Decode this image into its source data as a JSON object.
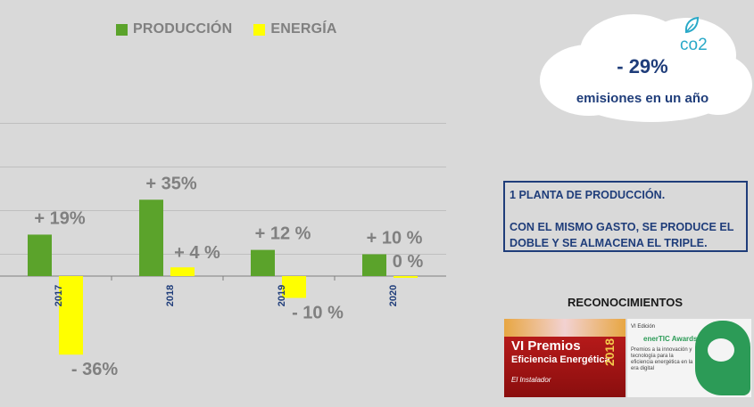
{
  "chart_data": {
    "type": "bar",
    "categories": [
      "2017",
      "2018",
      "2019",
      "2020"
    ],
    "series": [
      {
        "name": "PRODUCCIÓN",
        "color": "#5ba32b",
        "values": [
          19,
          35,
          12,
          10
        ],
        "labels": [
          "+ 19%",
          "+ 35%",
          "+ 12 %",
          "+ 10 %"
        ]
      },
      {
        "name": "ENERGÍA",
        "color": "#ffff00",
        "values": [
          -36,
          4,
          -10,
          0
        ],
        "labels": [
          "- 36%",
          "+ 4 %",
          "- 10 %",
          "0 %"
        ]
      }
    ],
    "ylim": [
      -40,
      70
    ],
    "grid": true
  },
  "cloud": {
    "icon": "co2-leaf-icon",
    "co2_label": "co2",
    "value": "- 29%",
    "caption": "emisiones en un año"
  },
  "info": {
    "line1": "1 PLANTA DE PRODUCCIÓN.",
    "line2": "CON EL MISMO GASTO, SE PRODUCE EL DOBLE Y SE ALMACENA EL TRIPLE."
  },
  "recognitions": {
    "title": "RECONOCIMIENTOS",
    "award1": {
      "line1": "VI Premios",
      "line2": "Eficiencia Energética",
      "year": "2018",
      "sponsor": "El Instalador"
    },
    "award2": {
      "edition": "VI Edición",
      "name": "enerTIC Awards",
      "desc": "Premios a la innovación y tecnología para la eficiencia energética en la era digital"
    }
  }
}
